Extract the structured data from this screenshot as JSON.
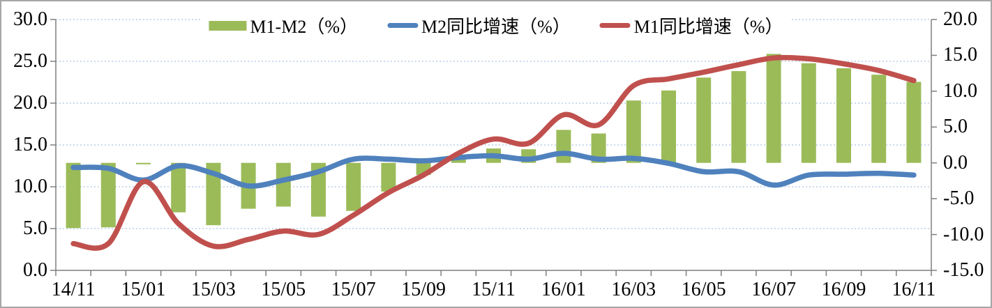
{
  "chart_data": {
    "type": "combo",
    "title": "",
    "legend_position": "top",
    "background": "#FFFFFF",
    "border_color": "#A6A6A6",
    "axis_color": "#7F7F7F",
    "text_color": "#000000",
    "grid": {
      "horizontal": true,
      "line_style": "dotted",
      "color": "#B9CDE5"
    },
    "x_labels": [
      "14/11",
      "14/12",
      "15/01",
      "15/02",
      "15/03",
      "15/04",
      "15/05",
      "15/06",
      "15/07",
      "15/08",
      "15/09",
      "15/10",
      "15/11",
      "15/12",
      "16/01",
      "16/02",
      "16/03",
      "16/04",
      "16/05",
      "16/06",
      "16/07",
      "16/08",
      "16/09",
      "16/10",
      "16/11"
    ],
    "x_label_every": 2,
    "axes": {
      "left": {
        "min": 0,
        "max": 30,
        "step": 5,
        "decimals": 1
      },
      "right": {
        "min": -15,
        "max": 20,
        "step": 5,
        "decimals": 1
      }
    },
    "series": [
      {
        "name": "M1-M2（%）",
        "type": "bar",
        "axis": "right",
        "color": "#9BBB59",
        "values": [
          -9.1,
          -9.0,
          -0.2,
          -6.9,
          -8.7,
          -6.4,
          -6.1,
          -7.5,
          -6.7,
          -4.0,
          -1.7,
          0.5,
          2.0,
          1.9,
          4.6,
          4.1,
          8.7,
          10.1,
          11.9,
          12.8,
          15.2,
          13.9,
          13.2,
          12.3,
          11.3
        ]
      },
      {
        "name": "M2同比增速（%）",
        "type": "line",
        "smooth": true,
        "axis": "left",
        "color": "#4F81BD",
        "values": [
          12.3,
          12.2,
          10.8,
          12.5,
          11.6,
          10.1,
          10.8,
          11.8,
          13.3,
          13.3,
          13.1,
          13.5,
          13.7,
          13.3,
          14.0,
          13.3,
          13.4,
          12.8,
          11.8,
          11.8,
          10.2,
          11.4,
          11.5,
          11.6,
          11.4
        ]
      },
      {
        "name": "M1同比增速（%）",
        "type": "line",
        "smooth": true,
        "axis": "left",
        "color": "#C0504D",
        "values": [
          3.2,
          3.2,
          10.6,
          5.6,
          2.9,
          3.7,
          4.7,
          4.3,
          6.6,
          9.3,
          11.4,
          14.0,
          15.7,
          15.2,
          18.6,
          17.4,
          22.1,
          22.9,
          23.7,
          24.6,
          25.4,
          25.3,
          24.7,
          23.9,
          22.7
        ]
      }
    ]
  }
}
